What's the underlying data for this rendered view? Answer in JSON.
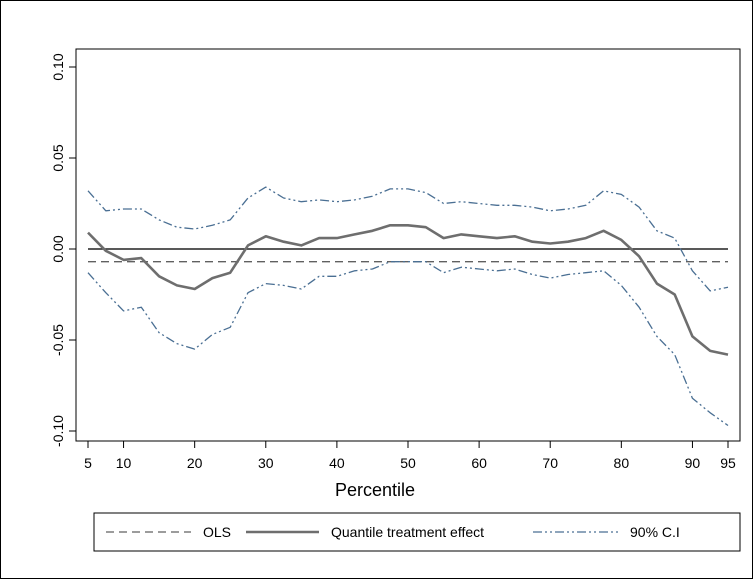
{
  "chart_data": {
    "type": "line",
    "xlabel": "Percentile",
    "ylabel": "",
    "xlim": [
      5,
      95
    ],
    "ylim": [
      -0.1,
      0.1
    ],
    "x_ticks": [
      5,
      10,
      20,
      30,
      40,
      50,
      60,
      70,
      80,
      90,
      95
    ],
    "y_ticks": [
      -0.1,
      -0.05,
      0.0,
      0.05,
      0.1
    ],
    "y_tick_labels": [
      "-0.10",
      "-0.05",
      "0.00",
      "0.05",
      "0.10"
    ],
    "grid": false,
    "legend_position": "bottom",
    "reference_line": {
      "y": 0.0
    },
    "x": [
      5,
      7.5,
      10,
      12.5,
      15,
      17.5,
      20,
      22.5,
      25,
      27.5,
      30,
      32.5,
      35,
      37.5,
      40,
      42.5,
      45,
      47.5,
      50,
      52.5,
      55,
      57.5,
      60,
      62.5,
      65,
      67.5,
      70,
      72.5,
      75,
      77.5,
      80,
      82.5,
      85,
      87.5,
      90,
      92.5,
      95
    ],
    "series": [
      {
        "name": "OLS",
        "style": "dashed",
        "color": "#606060",
        "values": [
          -0.007,
          -0.007,
          -0.007,
          -0.007,
          -0.007,
          -0.007,
          -0.007,
          -0.007,
          -0.007,
          -0.007,
          -0.007,
          -0.007,
          -0.007,
          -0.007,
          -0.007,
          -0.007,
          -0.007,
          -0.007,
          -0.007,
          -0.007,
          -0.007,
          -0.007,
          -0.007,
          -0.007,
          -0.007,
          -0.007,
          -0.007,
          -0.007,
          -0.007,
          -0.007,
          -0.007,
          -0.007,
          -0.007,
          -0.007,
          -0.007,
          -0.007,
          -0.007
        ]
      },
      {
        "name": "Quantile treatment effect",
        "style": "solid",
        "color": "#6e6e6e",
        "values": [
          0.009,
          -0.001,
          -0.006,
          -0.005,
          -0.015,
          -0.02,
          -0.022,
          -0.016,
          -0.013,
          0.002,
          0.007,
          0.004,
          0.002,
          0.006,
          0.006,
          0.008,
          0.01,
          0.013,
          0.013,
          0.012,
          0.006,
          0.008,
          0.007,
          0.006,
          0.007,
          0.004,
          0.003,
          0.004,
          0.006,
          0.01,
          0.005,
          -0.004,
          -0.019,
          -0.025,
          -0.048,
          -0.056,
          -0.058
        ]
      },
      {
        "name": "90% C.I",
        "style": "dashdot",
        "color": "#4a6f93",
        "values": [
          0.032,
          0.021,
          0.022,
          0.022,
          0.016,
          0.012,
          0.011,
          0.013,
          0.016,
          0.028,
          0.034,
          0.028,
          0.026,
          0.027,
          0.026,
          0.027,
          0.029,
          0.033,
          0.033,
          0.031,
          0.025,
          0.026,
          0.025,
          0.024,
          0.024,
          0.023,
          0.021,
          0.022,
          0.024,
          0.032,
          0.03,
          0.023,
          0.01,
          0.006,
          -0.012,
          -0.023,
          -0.021
        ]
      },
      {
        "name": "",
        "style": "dashdot",
        "color": "#4a6f93",
        "values": [
          -0.013,
          -0.024,
          -0.034,
          -0.032,
          -0.046,
          -0.052,
          -0.055,
          -0.047,
          -0.043,
          -0.024,
          -0.019,
          -0.02,
          -0.022,
          -0.015,
          -0.015,
          -0.012,
          -0.011,
          -0.007,
          -0.007,
          -0.007,
          -0.013,
          -0.01,
          -0.011,
          -0.012,
          -0.011,
          -0.014,
          -0.016,
          -0.014,
          -0.013,
          -0.012,
          -0.02,
          -0.032,
          -0.048,
          -0.058,
          -0.082,
          -0.09,
          -0.097
        ]
      }
    ],
    "legend": [
      "OLS",
      "Quantile treatment effect",
      "90% C.I"
    ]
  }
}
